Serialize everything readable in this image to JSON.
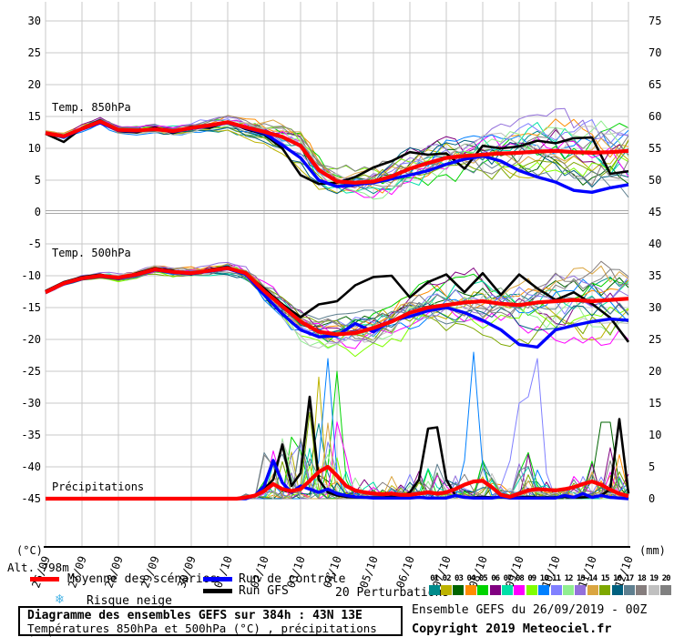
{
  "labels": {
    "altitude": "Alt. 798m",
    "unit_left": "(°C)",
    "unit_right": "(mm)"
  },
  "legend": {
    "mean_label": "Moyenne des scénarios",
    "control_label": "Run de contrôle",
    "gfs_label": "Run GFS",
    "snow_icon": "❄",
    "snow_label": "Risque neige",
    "perturbations_label": "20 Perturbations",
    "mean_color": "#ff0000",
    "control_color": "#0000ff",
    "gfs_color": "#000000"
  },
  "info_box": {
    "title": "Diagramme des ensembles GEFS sur 384h : 43N 13E",
    "subtitle": "Températures 850hPa et 500hPa (°C) , précipitations (mm)"
  },
  "footer": {
    "run_info": "Ensemble GEFS du 26/09/2019 - 00Z",
    "copyright": "Copyright 2019 Meteociel.fr"
  },
  "chart_data": {
    "type": "line",
    "title": "Diagramme des ensembles GEFS sur 384h : 43N 13E",
    "x_dates": [
      "26/09",
      "27/09",
      "28/09",
      "29/09",
      "30/09",
      "01/10",
      "02/10",
      "03/10",
      "04/10",
      "05/10",
      "06/10",
      "07/10",
      "08/10",
      "09/10",
      "10/10",
      "11/10",
      "12/10"
    ],
    "hours_total": 384,
    "yticks_left": [
      30,
      25,
      20,
      15,
      10,
      5,
      0,
      -5,
      -10,
      -15,
      -20,
      -25,
      -30,
      -35,
      -40,
      -45
    ],
    "yticks_right": [
      75,
      70,
      65,
      60,
      55,
      50,
      45,
      40,
      35,
      30,
      25,
      20,
      15,
      10,
      5,
      0
    ],
    "ylim_left": [
      -45,
      30
    ],
    "ylim_right_mm": [
      0,
      75
    ],
    "grid": true,
    "zero_line_emphasized": true,
    "panel_labels": [
      "Temp. 850hPa",
      "Temp. 500hPa",
      "Précipitations"
    ],
    "members": {
      "count": 20,
      "labels": [
        "01",
        "02",
        "03",
        "04",
        "05",
        "06",
        "07",
        "08",
        "09",
        "10",
        "11",
        "12",
        "13",
        "14",
        "15",
        "16",
        "17",
        "18",
        "19",
        "20"
      ],
      "colors": [
        "#008b8b",
        "#bdb300",
        "#006400",
        "#ff8c00",
        "#00d400",
        "#800080",
        "#00e0a8",
        "#ff00ff",
        "#7fff00",
        "#0080ff",
        "#8080ff",
        "#90ee90",
        "#9370db",
        "#daa540",
        "#7ea800",
        "#00607f",
        "#5f7f8f",
        "#857d7d",
        "#c0c0c0",
        "#808080"
      ]
    },
    "temp850": {
      "step_hours": 12,
      "mean": [
        12.4,
        11.9,
        13.1,
        14.2,
        12.9,
        12.8,
        13.0,
        12.7,
        13.2,
        13.6,
        14.1,
        13.3,
        12.6,
        11.8,
        10.4,
        6.6,
        4.8,
        4.6,
        4.8,
        5.6,
        6.8,
        7.7,
        8.5,
        8.8,
        9.0,
        9.2,
        9.3,
        9.5,
        9.6,
        9.4,
        9.3,
        9.4,
        9.6
      ],
      "control": [
        12.4,
        11.8,
        13.0,
        14.0,
        12.8,
        12.7,
        13.1,
        12.6,
        13.1,
        13.5,
        14.0,
        13.2,
        12.4,
        10.5,
        8.5,
        5.0,
        4.0,
        4.3,
        4.6,
        5.2,
        5.8,
        6.5,
        7.5,
        8.3,
        8.8,
        8.0,
        6.5,
        5.5,
        4.7,
        3.4,
        3.1,
        3.8,
        4.3
      ],
      "gfs": [
        12.3,
        11.0,
        13.2,
        14.4,
        12.7,
        12.5,
        13.3,
        12.4,
        13.4,
        13.2,
        14.2,
        13.0,
        12.2,
        10.0,
        5.8,
        4.4,
        4.6,
        5.5,
        7.0,
        8.0,
        9.4,
        9.0,
        9.2,
        6.8,
        10.4,
        10.0,
        10.3,
        11.2,
        10.8,
        11.6,
        11.7,
        6.0,
        6.4
      ],
      "spread": [
        0.4,
        0.5,
        0.5,
        0.6,
        0.6,
        0.6,
        0.7,
        0.7,
        0.8,
        0.9,
        1.0,
        1.2,
        1.5,
        2.2,
        3.0,
        2.6,
        2.2,
        2.5,
        2.8,
        3.0,
        3.2,
        3.5,
        3.8,
        4.0,
        4.2,
        4.3,
        4.5,
        4.6,
        4.8,
        5.0,
        5.2,
        5.5,
        5.8
      ]
    },
    "temp500": {
      "step_hours": 12,
      "mean": [
        -12.6,
        -11.2,
        -10.4,
        -10.0,
        -10.3,
        -9.8,
        -9.0,
        -9.4,
        -9.6,
        -9.2,
        -8.8,
        -9.6,
        -12.4,
        -14.8,
        -17.2,
        -18.8,
        -19.2,
        -19.0,
        -18.2,
        -17.2,
        -15.8,
        -15.0,
        -14.6,
        -14.2,
        -14.0,
        -14.4,
        -14.6,
        -14.2,
        -14.0,
        -13.8,
        -14.0,
        -13.8,
        -13.6
      ],
      "control": [
        -12.6,
        -11.3,
        -10.5,
        -10.1,
        -10.4,
        -9.9,
        -9.1,
        -9.5,
        -9.7,
        -9.3,
        -8.9,
        -9.8,
        -13.0,
        -16.0,
        -18.5,
        -19.6,
        -19.4,
        -17.5,
        -18.8,
        -17.0,
        -16.4,
        -15.5,
        -15.0,
        -15.8,
        -17.0,
        -18.5,
        -20.8,
        -21.2,
        -18.5,
        -17.8,
        -17.2,
        -16.8,
        -17.0
      ],
      "gfs": [
        -12.4,
        -11.0,
        -10.2,
        -9.8,
        -10.5,
        -9.6,
        -8.8,
        -9.2,
        -9.8,
        -9.0,
        -8.6,
        -9.8,
        -12.0,
        -14.5,
        -16.5,
        -14.5,
        -14.0,
        -11.5,
        -10.2,
        -10.0,
        -13.4,
        -11.0,
        -9.8,
        -12.6,
        -9.6,
        -13.0,
        -9.8,
        -12.0,
        -13.8,
        -12.6,
        -14.4,
        -16.6,
        -20.4
      ],
      "spread": [
        0.4,
        0.4,
        0.5,
        0.5,
        0.6,
        0.6,
        0.7,
        0.7,
        0.8,
        0.9,
        1.0,
        1.2,
        1.6,
        2.2,
        2.6,
        2.8,
        3.0,
        3.0,
        3.2,
        3.4,
        3.6,
        3.8,
        4.0,
        4.2,
        4.4,
        4.5,
        4.6,
        4.7,
        4.8,
        4.9,
        5.0,
        5.1,
        5.2
      ]
    },
    "precip": {
      "step_hours": 6,
      "mean": [
        0,
        0,
        0,
        0,
        0,
        0,
        0,
        0,
        0,
        0,
        0,
        0,
        0,
        0,
        0,
        0,
        0,
        0,
        0,
        0,
        0,
        0,
        0.2,
        0.5,
        1.2,
        2.3,
        1.5,
        1.2,
        1.5,
        2.8,
        4.2,
        5.0,
        3.6,
        2.0,
        1.3,
        1.0,
        0.8,
        0.7,
        0.8,
        0.6,
        0.6,
        0.8,
        1.0,
        0.8,
        1.0,
        1.5,
        2.2,
        2.7,
        2.8,
        1.8,
        0.6,
        0.3,
        0.8,
        1.3,
        1.5,
        1.4,
        1.3,
        1.5,
        1.8,
        2.3,
        2.7,
        2.2,
        1.4,
        0.8,
        0.4
      ],
      "control": [
        0,
        0,
        0,
        0,
        0,
        0,
        0,
        0,
        0,
        0,
        0,
        0,
        0,
        0,
        0,
        0,
        0,
        0,
        0,
        0,
        0,
        0,
        0,
        0.5,
        2.0,
        6.0,
        2.5,
        1.0,
        2.0,
        1.5,
        1.0,
        1.5,
        0.8,
        0.5,
        0.3,
        0.2,
        0.1,
        0.1,
        0.1,
        0.1,
        0.1,
        0.2,
        0.1,
        0.1,
        0.1,
        0.5,
        0.2,
        0.1,
        0.1,
        0.1,
        0.3,
        0.1,
        0.1,
        0.1,
        0.1,
        0.1,
        0.1,
        0.5,
        0.2,
        0.8,
        0.2,
        0.5,
        0.2,
        0.1,
        0
      ],
      "gfs": [
        0,
        0,
        0,
        0,
        0,
        0,
        0,
        0,
        0,
        0,
        0,
        0,
        0,
        0,
        0,
        0,
        0,
        0,
        0,
        0,
        0,
        0,
        0,
        0.5,
        1.5,
        3.0,
        8.5,
        2.0,
        4.0,
        16.0,
        3.0,
        1.0,
        0.5,
        0.3,
        0.2,
        0.2,
        0.2,
        0.2,
        0.3,
        0.2,
        1.0,
        3.0,
        11.0,
        11.2,
        3.0,
        0.5,
        0.2,
        0.2,
        0.3,
        0.2,
        0.2,
        0.2,
        0.2,
        0.3,
        0.2,
        0.2,
        0.2,
        0.3,
        0.2,
        0.2,
        0.3,
        0.5,
        1.5,
        12.5,
        0.8
      ],
      "envelope": [
        0,
        0,
        0,
        0,
        0,
        0,
        0,
        0,
        0,
        0,
        0,
        0,
        0,
        0,
        0,
        0,
        0,
        0,
        0,
        0,
        0,
        0,
        1,
        2,
        8,
        9,
        12,
        10,
        12,
        17,
        22,
        16,
        20,
        8,
        5,
        4,
        3,
        3,
        4,
        3,
        4,
        6,
        8,
        6,
        5,
        4,
        5,
        8,
        6,
        4,
        3,
        3,
        6,
        8,
        6,
        5,
        4,
        3,
        4,
        5,
        6,
        8,
        10,
        8,
        4
      ],
      "member_events": [
        {
          "member": 9,
          "points": {
            "30": 6,
            "31": 22,
            "32": 4
          }
        },
        {
          "member": 4,
          "points": {
            "31": 5,
            "32": 20,
            "33": 3
          }
        },
        {
          "member": 9,
          "points": {
            "46": 6,
            "47": 23,
            "48": 5
          }
        },
        {
          "member": 10,
          "points": {
            "50": 2,
            "51": 6,
            "52": 15,
            "53": 16,
            "54": 22,
            "55": 4
          }
        },
        {
          "member": 2,
          "points": {
            "60": 3,
            "61": 12,
            "62": 12,
            "63": 2
          }
        },
        {
          "member": 5,
          "points": {
            "62": 8,
            "63": 1
          }
        },
        {
          "member": 0,
          "points": {
            "28": 9,
            "29": 5
          }
        },
        {
          "member": 16,
          "points": {
            "25": 5,
            "26": 7,
            "27": 3
          }
        }
      ]
    },
    "colors": {
      "grid": "#c8c8c8",
      "zero_line": "#a8a8a8",
      "axis": "#000000"
    }
  }
}
